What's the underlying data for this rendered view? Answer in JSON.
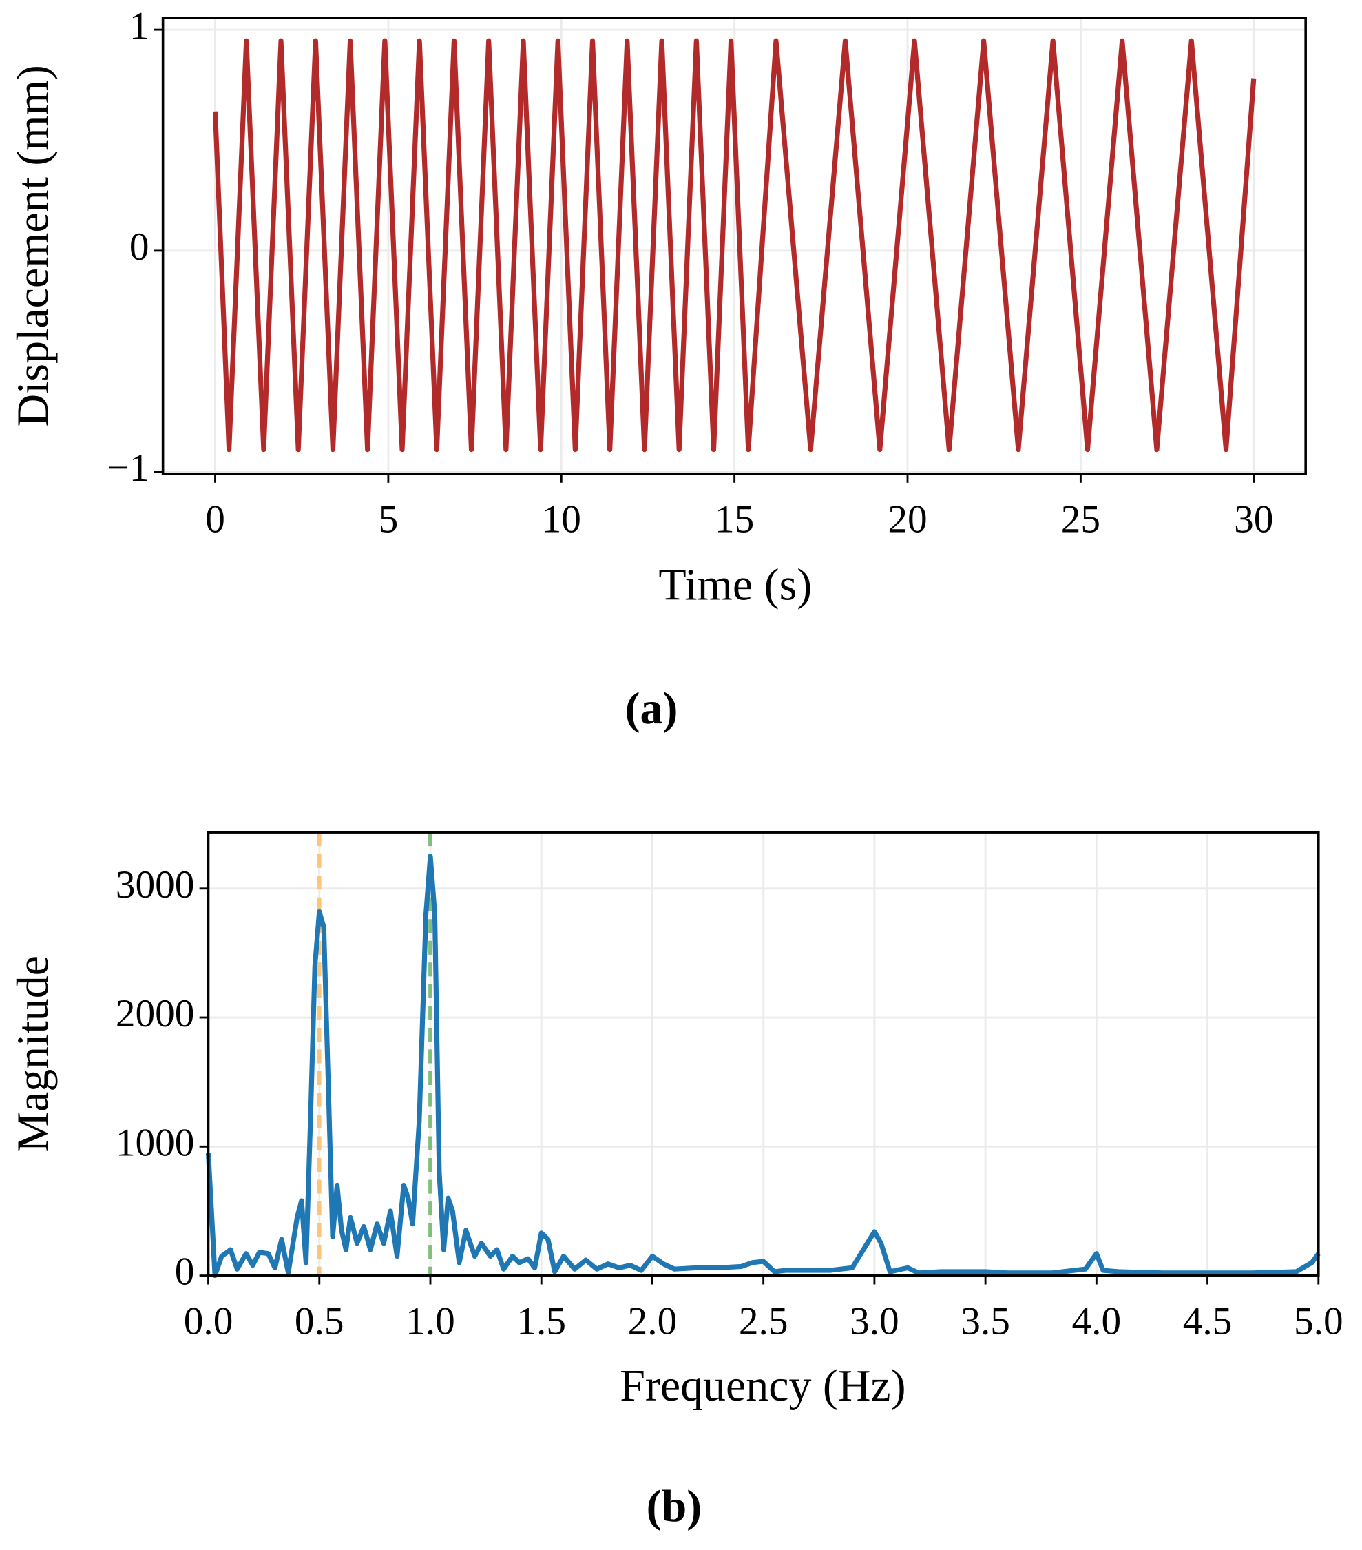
{
  "chart_data": [
    {
      "type": "line",
      "xlabel": "Time (s)",
      "ylabel": "Displacement (mm)",
      "caption": "(a)",
      "xlim": [
        -1.51,
        31.5
      ],
      "ylim": [
        -1.01,
        1.054
      ],
      "xticks": [
        0,
        5,
        10,
        15,
        20,
        25,
        30
      ],
      "yticks": [
        {
          "value": -1,
          "label": "−1"
        },
        0,
        1
      ],
      "grid": true,
      "series": [
        {
          "color": "#b22a2a",
          "x": [
            0,
            0.4,
            0.9,
            1.4,
            1.9,
            2.4,
            2.9,
            3.4,
            3.9,
            4.4,
            4.9,
            5.4,
            5.9,
            6.4,
            6.9,
            7.4,
            7.9,
            8.4,
            8.9,
            9.4,
            9.9,
            10.4,
            10.9,
            11.4,
            11.9,
            12.4,
            12.9,
            13.4,
            13.9,
            14.4,
            14.9,
            15.4,
            16.2,
            17.2,
            18.2,
            19.2,
            20.2,
            21.2,
            22.2,
            23.2,
            24.2,
            25.2,
            26.2,
            27.2,
            28.2,
            29.2,
            30
          ],
          "values": [
            0.63,
            -0.9,
            0.95,
            -0.9,
            0.95,
            -0.9,
            0.95,
            -0.9,
            0.95,
            -0.9,
            0.95,
            -0.9,
            0.95,
            -0.9,
            0.95,
            -0.9,
            0.95,
            -0.9,
            0.95,
            -0.9,
            0.95,
            -0.9,
            0.95,
            -0.9,
            0.95,
            -0.9,
            0.95,
            -0.9,
            0.95,
            -0.9,
            0.95,
            -0.9,
            0.95,
            -0.9,
            0.95,
            -0.9,
            0.95,
            -0.9,
            0.95,
            -0.9,
            0.95,
            -0.9,
            0.95,
            -0.9,
            0.95,
            -0.9,
            0.78
          ]
        }
      ]
    },
    {
      "type": "line",
      "xlabel": "Frequency (Hz)",
      "ylabel": "Magnitude",
      "caption": "(b)",
      "xlim": [
        0,
        5
      ],
      "ylim": [
        0,
        3436
      ],
      "xticks": [
        {
          "value": 0,
          "label": "0.0"
        },
        0.5,
        {
          "value": 1,
          "label": "1.0"
        },
        1.5,
        {
          "value": 2,
          "label": "2.0"
        },
        2.5,
        {
          "value": 3,
          "label": "3.0"
        },
        3.5,
        {
          "value": 4,
          "label": "4.0"
        },
        4.5,
        {
          "value": 5,
          "label": "5.0"
        }
      ],
      "yticks": [
        0,
        1000,
        2000,
        3000
      ],
      "grid": true,
      "vlines": [
        {
          "x": 0.5,
          "color": "#fdc57b"
        },
        {
          "x": 1.0,
          "color": "#7fbf7b"
        }
      ],
      "series": [
        {
          "color": "#1f77b4",
          "x": [
            0,
            0.03,
            0.06,
            0.1,
            0.13,
            0.17,
            0.2,
            0.23,
            0.27,
            0.3,
            0.33,
            0.36,
            0.4,
            0.42,
            0.44,
            0.46,
            0.48,
            0.5,
            0.52,
            0.54,
            0.56,
            0.58,
            0.6,
            0.62,
            0.64,
            0.67,
            0.7,
            0.73,
            0.76,
            0.79,
            0.82,
            0.85,
            0.88,
            0.9,
            0.92,
            0.95,
            0.98,
            1.0,
            1.02,
            1.04,
            1.06,
            1.08,
            1.1,
            1.13,
            1.16,
            1.2,
            1.23,
            1.27,
            1.3,
            1.33,
            1.37,
            1.4,
            1.44,
            1.47,
            1.5,
            1.53,
            1.56,
            1.6,
            1.65,
            1.7,
            1.75,
            1.8,
            1.85,
            1.9,
            1.95,
            2.0,
            2.05,
            2.1,
            2.2,
            2.3,
            2.4,
            2.45,
            2.5,
            2.55,
            2.6,
            2.7,
            2.8,
            2.9,
            2.95,
            3.0,
            3.03,
            3.07,
            3.15,
            3.2,
            3.3,
            3.5,
            3.6,
            3.8,
            3.95,
            4.0,
            4.03,
            4.1,
            4.3,
            4.5,
            4.7,
            4.9,
            4.97,
            5.0
          ],
          "values": [
            950,
            0,
            150,
            200,
            50,
            170,
            80,
            180,
            170,
            60,
            280,
            20,
            450,
            580,
            100,
            1200,
            2400,
            2820,
            2700,
            1500,
            300,
            700,
            350,
            200,
            450,
            250,
            380,
            200,
            400,
            250,
            500,
            150,
            700,
            600,
            400,
            1200,
            2800,
            3250,
            2800,
            800,
            200,
            600,
            500,
            100,
            350,
            150,
            250,
            150,
            200,
            50,
            150,
            100,
            130,
            60,
            330,
            280,
            30,
            150,
            50,
            120,
            50,
            90,
            60,
            80,
            40,
            150,
            90,
            50,
            60,
            60,
            70,
            100,
            110,
            30,
            40,
            40,
            40,
            60,
            200,
            340,
            250,
            30,
            60,
            20,
            30,
            30,
            20,
            20,
            50,
            170,
            40,
            30,
            20,
            20,
            20,
            30,
            100,
            170
          ]
        }
      ]
    }
  ]
}
